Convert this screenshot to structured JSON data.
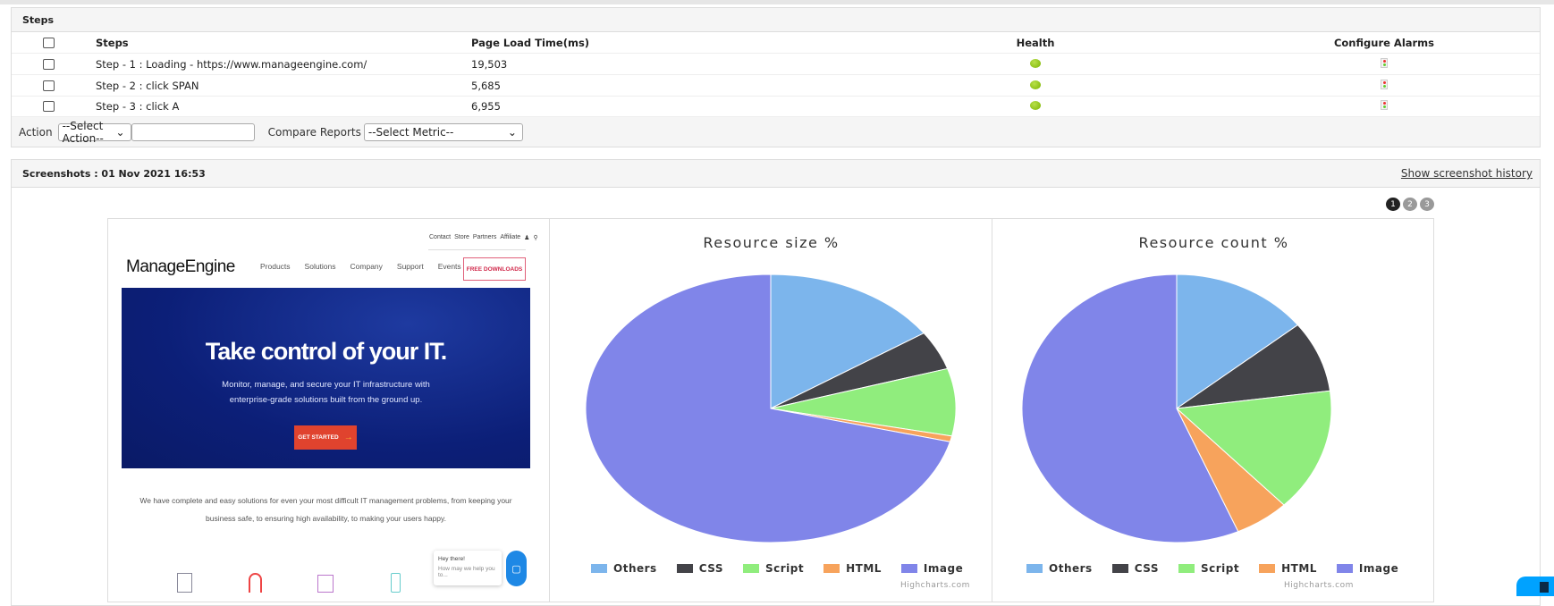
{
  "steps_panel": {
    "title": "Steps",
    "headers": {
      "steps": "Steps",
      "load": "Page Load Time(ms)",
      "health": "Health",
      "alarms": "Configure Alarms"
    },
    "rows": [
      {
        "step": "Step - 1 : Loading - https://www.manageengine.com/",
        "load": "19,503",
        "health": "green"
      },
      {
        "step": "Step - 2 : click SPAN",
        "load": "5,685",
        "health": "green"
      },
      {
        "step": "Step - 3 : click A",
        "load": "6,955",
        "health": "green"
      }
    ],
    "action_label": "Action",
    "action_select": "--Select Action--",
    "compare_label": "Compare Reports",
    "compare_select": "--Select Metric--"
  },
  "screenshots": {
    "title": "Screenshots : 01 Nov 2021 16:53",
    "history_link": "Show screenshot history",
    "pages": [
      "1",
      "2",
      "3"
    ],
    "active_page": "1"
  },
  "website": {
    "logo": "ManageEngine",
    "top_links": [
      "Contact",
      "Store",
      "Partners",
      "Affiliate"
    ],
    "nav": [
      "Products",
      "Solutions",
      "Company",
      "Support",
      "Events"
    ],
    "cta": "FREE DOWNLOADS",
    "headline": "Take control of your IT.",
    "sub1": "Monitor, manage, and secure your IT infrastructure with",
    "sub2": "enterprise-grade solutions built from the ground up.",
    "button": "GET STARTED",
    "para1": "We have complete and easy solutions for even your most difficult IT management problems, from keeping your",
    "para2": "business safe, to ensuring high availability, to making your users happy.",
    "chat_title": "Hey there!",
    "chat_text": "How may we help you to..."
  },
  "chart_data": [
    {
      "type": "pie",
      "title": "Resource size %",
      "credit": "Highcharts.com",
      "legend": "bottom",
      "categories": [
        "Others",
        "CSS",
        "Script",
        "HTML",
        "Image"
      ],
      "values": [
        15.5,
        4.7,
        8.1,
        0.7,
        71.0
      ],
      "colors": [
        "#7cb5ec",
        "#434348",
        "#90ed7d",
        "#f7a35c",
        "#8085e9"
      ]
    },
    {
      "type": "pie",
      "title": "Resource count %",
      "credit": "Highcharts.com",
      "legend": "bottom",
      "categories": [
        "Others",
        "CSS",
        "Script",
        "HTML",
        "Image"
      ],
      "values": [
        14.3,
        8.6,
        14.9,
        5.7,
        56.5
      ],
      "colors": [
        "#7cb5ec",
        "#434348",
        "#90ed7d",
        "#f7a35c",
        "#8085e9"
      ]
    }
  ]
}
